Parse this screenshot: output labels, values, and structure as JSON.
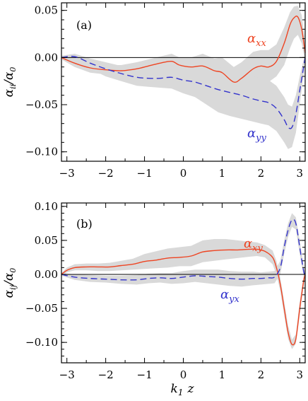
{
  "figure": {
    "xlabel": "k",
    "xlabel_sub": "1",
    "xlabel_var": "z"
  },
  "chart_data": [
    {
      "type": "line",
      "panel_label": "(a)",
      "ylabel_main": "α",
      "ylabel_sub": "ii",
      "ylabel_denom": "/α",
      "ylabel_denom_sub": "0",
      "xlim": [
        -3.14,
        3.14
      ],
      "ylim": [
        -0.11,
        0.058
      ],
      "xticks": [
        -3,
        -2,
        -1,
        0,
        1,
        2,
        3
      ],
      "xtick_labels": [
        "−3",
        "−2",
        "−1",
        "0",
        "1",
        "2",
        "3"
      ],
      "yticks": [
        -0.1,
        -0.05,
        0.0,
        0.05
      ],
      "ytick_labels": [
        "−0.10",
        "−0.05",
        "0.00",
        "0.05"
      ],
      "zero_line": true,
      "series": [
        {
          "name_main": "α",
          "name_sub": "xx",
          "color": "#ee4422",
          "style": "solid",
          "x": [
            -3.14,
            -2.8,
            -2.4,
            -2.0,
            -1.6,
            -1.2,
            -0.9,
            -0.6,
            -0.3,
            -0.1,
            0.2,
            0.5,
            0.8,
            1.0,
            1.3,
            1.5,
            1.8,
            2.0,
            2.2,
            2.4,
            2.6,
            2.75,
            2.85,
            2.95,
            3.05,
            3.14
          ],
          "y": [
            0.0,
            -0.006,
            -0.011,
            -0.013,
            -0.014,
            -0.012,
            -0.009,
            -0.006,
            -0.004,
            -0.008,
            -0.01,
            -0.009,
            -0.014,
            -0.016,
            -0.026,
            -0.022,
            -0.012,
            -0.009,
            -0.01,
            -0.004,
            0.015,
            0.035,
            0.042,
            0.043,
            0.03,
            0.005
          ],
          "band_lower": [
            -0.002,
            -0.01,
            -0.016,
            -0.018,
            -0.02,
            -0.019,
            -0.016,
            -0.013,
            -0.012,
            -0.016,
            -0.02,
            -0.022,
            -0.028,
            -0.032,
            -0.042,
            -0.04,
            -0.03,
            -0.026,
            -0.026,
            -0.02,
            -0.008,
            0.01,
            0.02,
            0.024,
            0.015,
            -0.005
          ],
          "band_upper": [
            0.002,
            -0.002,
            -0.006,
            -0.008,
            -0.008,
            -0.005,
            -0.002,
            0.001,
            0.004,
            0.0,
            0.0,
            0.004,
            -0.001,
            0.0,
            -0.01,
            -0.005,
            0.006,
            0.008,
            0.008,
            0.014,
            0.032,
            0.048,
            0.054,
            0.055,
            0.045,
            0.015
          ]
        },
        {
          "name_main": "α",
          "name_sub": "yy",
          "color": "#3333cc",
          "style": "dashed",
          "x": [
            -3.14,
            -2.8,
            -2.4,
            -2.0,
            -1.6,
            -1.2,
            -0.9,
            -0.6,
            -0.3,
            0.0,
            0.3,
            0.6,
            0.9,
            1.2,
            1.5,
            1.8,
            2.0,
            2.2,
            2.4,
            2.6,
            2.7,
            2.8,
            2.9,
            3.0,
            3.14
          ],
          "y": [
            0.0,
            0.001,
            -0.006,
            -0.012,
            -0.017,
            -0.021,
            -0.022,
            -0.022,
            -0.021,
            -0.024,
            -0.026,
            -0.03,
            -0.034,
            -0.037,
            -0.04,
            -0.044,
            -0.046,
            -0.048,
            -0.054,
            -0.066,
            -0.074,
            -0.074,
            -0.06,
            -0.035,
            0.0
          ],
          "band_lower": [
            -0.002,
            -0.003,
            -0.012,
            -0.02,
            -0.025,
            -0.03,
            -0.031,
            -0.032,
            -0.033,
            -0.038,
            -0.042,
            -0.05,
            -0.058,
            -0.062,
            -0.065,
            -0.068,
            -0.07,
            -0.072,
            -0.078,
            -0.09,
            -0.097,
            -0.095,
            -0.08,
            -0.05,
            -0.005
          ],
          "band_upper": [
            0.002,
            0.004,
            -0.001,
            -0.005,
            -0.009,
            -0.012,
            -0.013,
            -0.012,
            -0.01,
            -0.01,
            -0.01,
            -0.01,
            -0.01,
            -0.012,
            -0.015,
            -0.02,
            -0.022,
            -0.024,
            -0.03,
            -0.042,
            -0.05,
            -0.052,
            -0.04,
            -0.02,
            0.005
          ]
        }
      ]
    },
    {
      "type": "line",
      "panel_label": "(b)",
      "ylabel_main": "α",
      "ylabel_sub": "ij",
      "ylabel_denom": "/α",
      "ylabel_denom_sub": "0",
      "xlim": [
        -3.14,
        3.14
      ],
      "ylim": [
        -0.13,
        0.105
      ],
      "xticks": [
        -3,
        -2,
        -1,
        0,
        1,
        2,
        3
      ],
      "xtick_labels": [
        "−3",
        "−2",
        "−1",
        "0",
        "1",
        "2",
        "3"
      ],
      "yticks": [
        -0.1,
        -0.05,
        0.0,
        0.05,
        0.1
      ],
      "ytick_labels": [
        "−0.10",
        "−0.05",
        "0.00",
        "0.05",
        "0.10"
      ],
      "zero_line": true,
      "series": [
        {
          "name_main": "α",
          "name_sub": "xy",
          "color": "#ee4422",
          "style": "solid",
          "x": [
            -3.14,
            -3.0,
            -2.8,
            -2.5,
            -2.2,
            -1.9,
            -1.6,
            -1.3,
            -1.0,
            -0.7,
            -0.4,
            -0.1,
            0.2,
            0.5,
            0.8,
            1.1,
            1.4,
            1.7,
            1.9,
            2.1,
            2.3,
            2.4,
            2.5,
            2.6,
            2.7,
            2.8,
            2.9,
            3.0,
            3.1,
            3.14
          ],
          "y": [
            0.0,
            0.006,
            0.01,
            0.011,
            0.011,
            0.011,
            0.013,
            0.015,
            0.019,
            0.021,
            0.024,
            0.025,
            0.027,
            0.033,
            0.035,
            0.036,
            0.036,
            0.037,
            0.037,
            0.034,
            0.025,
            0.01,
            -0.015,
            -0.05,
            -0.085,
            -0.103,
            -0.095,
            -0.05,
            -0.01,
            0.0
          ],
          "band_lower": [
            -0.002,
            0.003,
            0.006,
            0.006,
            0.005,
            0.005,
            0.006,
            0.007,
            0.008,
            0.009,
            0.01,
            0.012,
            0.012,
            0.018,
            0.02,
            0.022,
            0.024,
            0.026,
            0.027,
            0.025,
            0.015,
            0.0,
            -0.025,
            -0.06,
            -0.095,
            -0.11,
            -0.102,
            -0.06,
            -0.018,
            -0.004
          ],
          "band_upper": [
            0.002,
            0.01,
            0.015,
            0.016,
            0.016,
            0.017,
            0.02,
            0.023,
            0.03,
            0.034,
            0.038,
            0.04,
            0.042,
            0.05,
            0.052,
            0.052,
            0.05,
            0.048,
            0.047,
            0.043,
            0.035,
            0.02,
            -0.005,
            -0.04,
            -0.075,
            -0.096,
            -0.088,
            -0.04,
            -0.002,
            0.004
          ]
        },
        {
          "name_main": "α",
          "name_sub": "yx",
          "color": "#3333cc",
          "style": "dashed",
          "x": [
            -3.14,
            -2.8,
            -2.4,
            -2.0,
            -1.6,
            -1.2,
            -0.9,
            -0.6,
            -0.3,
            0.0,
            0.3,
            0.6,
            0.9,
            1.2,
            1.5,
            1.8,
            2.0,
            2.2,
            2.35,
            2.5,
            2.6,
            2.7,
            2.8,
            2.9,
            3.0,
            3.1,
            3.14
          ],
          "y": [
            0.0,
            -0.004,
            -0.006,
            -0.007,
            -0.008,
            -0.008,
            -0.006,
            -0.005,
            -0.006,
            -0.004,
            -0.002,
            -0.003,
            -0.004,
            -0.006,
            -0.007,
            -0.006,
            -0.006,
            -0.005,
            -0.004,
            0.01,
            0.04,
            0.065,
            0.08,
            0.075,
            0.04,
            0.005,
            0.0
          ],
          "band_lower": [
            -0.002,
            -0.008,
            -0.011,
            -0.012,
            -0.014,
            -0.015,
            -0.013,
            -0.012,
            -0.014,
            -0.013,
            -0.011,
            -0.013,
            -0.015,
            -0.017,
            -0.018,
            -0.016,
            -0.015,
            -0.014,
            -0.013,
            0.0,
            0.03,
            0.055,
            0.07,
            0.066,
            0.03,
            -0.002,
            -0.004
          ],
          "band_upper": [
            0.002,
            0.0,
            -0.001,
            -0.002,
            -0.002,
            -0.001,
            0.001,
            0.002,
            0.002,
            0.005,
            0.007,
            0.007,
            0.007,
            0.005,
            0.004,
            0.004,
            0.003,
            0.004,
            0.005,
            0.02,
            0.05,
            0.075,
            0.09,
            0.084,
            0.05,
            0.012,
            0.004
          ]
        }
      ]
    }
  ]
}
